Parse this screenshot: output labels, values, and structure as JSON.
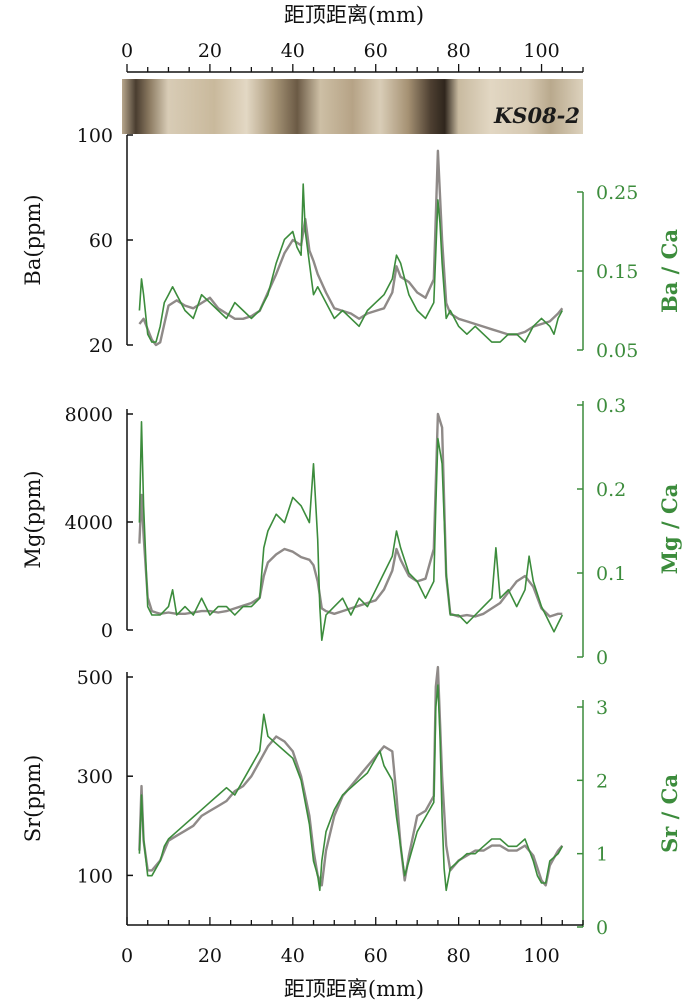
{
  "figure": {
    "top_axis_label": "距顶距离(mm)",
    "bottom_axis_label": "距顶距离(mm)",
    "x_ticks": [
      "0",
      "20",
      "40",
      "60",
      "80",
      "100"
    ],
    "core_label": "KS08-2"
  },
  "colors": {
    "ppm_series": "#8f8a88",
    "ratio_series": "#3c8c3c",
    "axis": "#111111",
    "ratio_axis": "#3c8c3c"
  },
  "chart_data": [
    {
      "type": "line",
      "panel": "Ba",
      "xlim": [
        0,
        110
      ],
      "left_axis": {
        "label": "Ba(ppm)",
        "ticks": [
          "20",
          "60",
          "100"
        ],
        "ylim": [
          20,
          100
        ]
      },
      "right_axis": {
        "label": "Ba / Ca",
        "ticks": [
          "0.05",
          "0.15",
          "0.25"
        ],
        "ylim": [
          0.05,
          0.25
        ]
      },
      "series": [
        {
          "axis": "left",
          "x": [
            3,
            4,
            5,
            6,
            7,
            8,
            9,
            10,
            12,
            14,
            16,
            18,
            20,
            22,
            24,
            26,
            28,
            30,
            32,
            34,
            36,
            38,
            40,
            42,
            43,
            44,
            45,
            46,
            48,
            50,
            52,
            54,
            56,
            58,
            60,
            62,
            64,
            65,
            66,
            68,
            70,
            72,
            74,
            75,
            76,
            77,
            78,
            80,
            82,
            84,
            86,
            88,
            90,
            92,
            94,
            96,
            98,
            100,
            102,
            104,
            105
          ],
          "y": [
            28,
            30,
            26,
            22,
            20,
            21,
            28,
            35,
            37,
            35,
            34,
            36,
            38,
            34,
            32,
            30,
            30,
            31,
            33,
            40,
            47,
            55,
            60,
            58,
            68,
            56,
            52,
            47,
            40,
            34,
            33,
            32,
            30,
            32,
            33,
            34,
            40,
            50,
            46,
            44,
            40,
            38,
            45,
            94,
            60,
            36,
            32,
            30,
            29,
            28,
            27,
            26,
            25,
            24,
            24,
            25,
            27,
            28,
            29,
            32,
            34
          ]
        },
        {
          "axis": "right",
          "x": [
            3,
            3.5,
            4,
            5,
            6,
            7,
            8,
            9,
            10,
            11,
            12,
            14,
            16,
            18,
            20,
            22,
            24,
            26,
            28,
            30,
            32,
            34,
            36,
            38,
            40,
            41,
            42,
            42.5,
            43,
            44,
            45,
            46,
            48,
            50,
            52,
            54,
            56,
            58,
            60,
            62,
            64,
            65,
            66,
            67,
            68,
            70,
            72,
            74,
            75,
            75.5,
            76,
            77,
            78,
            80,
            82,
            84,
            86,
            88,
            90,
            92,
            94,
            96,
            98,
            100,
            102,
            103,
            104,
            105
          ],
          "y": [
            0.1,
            0.14,
            0.12,
            0.07,
            0.06,
            0.06,
            0.08,
            0.11,
            0.12,
            0.13,
            0.12,
            0.1,
            0.09,
            0.12,
            0.11,
            0.1,
            0.09,
            0.11,
            0.1,
            0.09,
            0.1,
            0.12,
            0.16,
            0.19,
            0.2,
            0.18,
            0.17,
            0.26,
            0.2,
            0.16,
            0.12,
            0.13,
            0.11,
            0.09,
            0.1,
            0.09,
            0.08,
            0.1,
            0.11,
            0.12,
            0.14,
            0.17,
            0.16,
            0.14,
            0.12,
            0.1,
            0.09,
            0.11,
            0.24,
            0.21,
            0.16,
            0.09,
            0.1,
            0.08,
            0.07,
            0.08,
            0.07,
            0.06,
            0.06,
            0.07,
            0.07,
            0.06,
            0.08,
            0.09,
            0.08,
            0.07,
            0.09,
            0.1
          ]
        }
      ]
    },
    {
      "type": "line",
      "panel": "Mg",
      "xlim": [
        0,
        110
      ],
      "left_axis": {
        "label": "Mg(ppm)",
        "ticks": [
          "0",
          "4000",
          "8000"
        ],
        "ylim": [
          0,
          8000
        ]
      },
      "right_axis": {
        "label": "Mg / Ca",
        "ticks": [
          "0",
          "0.1",
          "0.2",
          "0.3"
        ],
        "ylim": [
          0,
          0.3
        ]
      },
      "series": [
        {
          "axis": "left",
          "x": [
            3,
            3.5,
            4,
            5,
            6,
            7,
            8,
            10,
            12,
            14,
            16,
            18,
            20,
            22,
            24,
            26,
            28,
            30,
            32,
            33,
            34,
            36,
            38,
            40,
            42,
            44,
            45,
            46,
            47,
            48,
            50,
            52,
            54,
            56,
            58,
            60,
            62,
            64,
            65,
            66,
            68,
            70,
            72,
            74,
            75,
            76,
            77,
            78,
            80,
            82,
            84,
            86,
            88,
            90,
            92,
            94,
            96,
            98,
            100,
            102,
            104,
            105
          ],
          "y": [
            3200,
            5000,
            3500,
            1200,
            700,
            650,
            600,
            650,
            600,
            600,
            650,
            700,
            700,
            650,
            700,
            800,
            900,
            1000,
            1200,
            2000,
            2500,
            2800,
            3000,
            2900,
            2700,
            2600,
            2400,
            1800,
            800,
            700,
            600,
            700,
            800,
            900,
            1000,
            1100,
            1500,
            2200,
            3000,
            2600,
            2000,
            1800,
            1900,
            3000,
            8000,
            7500,
            2000,
            600,
            500,
            550,
            500,
            600,
            800,
            1000,
            1400,
            1800,
            2000,
            1600,
            800,
            500,
            600,
            600
          ]
        },
        {
          "axis": "right",
          "x": [
            3,
            3.5,
            4,
            5,
            6,
            7,
            8,
            10,
            11,
            12,
            14,
            16,
            18,
            20,
            22,
            24,
            26,
            28,
            30,
            32,
            33,
            34,
            36,
            38,
            40,
            42,
            44,
            45,
            46,
            46.5,
            47,
            48,
            50,
            52,
            54,
            56,
            58,
            60,
            62,
            64,
            65,
            66,
            68,
            70,
            72,
            74,
            74.5,
            75,
            76,
            77,
            78,
            80,
            82,
            84,
            86,
            88,
            89,
            90,
            92,
            94,
            96,
            97,
            98,
            100,
            101,
            102,
            103,
            104,
            105
          ],
          "y": [
            0.16,
            0.28,
            0.18,
            0.06,
            0.05,
            0.05,
            0.05,
            0.06,
            0.08,
            0.05,
            0.06,
            0.05,
            0.07,
            0.05,
            0.06,
            0.06,
            0.05,
            0.06,
            0.06,
            0.07,
            0.13,
            0.15,
            0.17,
            0.16,
            0.19,
            0.18,
            0.16,
            0.23,
            0.14,
            0.06,
            0.02,
            0.05,
            0.06,
            0.07,
            0.05,
            0.07,
            0.06,
            0.08,
            0.1,
            0.12,
            0.15,
            0.13,
            0.1,
            0.09,
            0.07,
            0.09,
            0.18,
            0.26,
            0.23,
            0.1,
            0.05,
            0.05,
            0.04,
            0.05,
            0.06,
            0.07,
            0.13,
            0.07,
            0.08,
            0.06,
            0.08,
            0.12,
            0.09,
            0.06,
            0.05,
            0.04,
            0.03,
            0.04,
            0.05
          ]
        }
      ]
    },
    {
      "type": "line",
      "panel": "Sr",
      "xlim": [
        0,
        110
      ],
      "left_axis": {
        "label": "Sr(ppm)",
        "ticks": [
          "100",
          "300",
          "500"
        ],
        "ylim": [
          0,
          500
        ]
      },
      "right_axis": {
        "label": "Sr / Ca",
        "ticks": [
          "0",
          "1",
          "2",
          "3"
        ],
        "ylim": [
          0,
          3
        ]
      },
      "series": [
        {
          "axis": "left",
          "x": [
            3,
            3.5,
            4,
            5,
            6,
            7,
            8,
            10,
            12,
            14,
            16,
            18,
            20,
            22,
            24,
            26,
            28,
            30,
            32,
            34,
            36,
            38,
            40,
            42,
            44,
            45,
            46,
            47,
            48,
            50,
            52,
            54,
            56,
            58,
            60,
            62,
            64,
            65,
            66,
            67,
            68,
            70,
            72,
            74,
            74.5,
            75,
            76,
            77,
            78,
            80,
            82,
            84,
            86,
            88,
            90,
            92,
            94,
            96,
            98,
            100,
            101,
            102,
            104,
            105
          ],
          "y": [
            150,
            280,
            170,
            110,
            110,
            120,
            130,
            170,
            180,
            190,
            200,
            220,
            230,
            240,
            250,
            270,
            280,
            300,
            330,
            360,
            380,
            370,
            350,
            300,
            220,
            150,
            100,
            80,
            150,
            220,
            260,
            280,
            300,
            320,
            340,
            360,
            350,
            260,
            160,
            90,
            140,
            220,
            230,
            260,
            480,
            520,
            300,
            160,
            110,
            130,
            140,
            150,
            150,
            160,
            160,
            150,
            150,
            160,
            140,
            90,
            80,
            120,
            150,
            160
          ]
        },
        {
          "axis": "right",
          "x": [
            3,
            3.5,
            4,
            5,
            6,
            7,
            8,
            9,
            10,
            12,
            14,
            16,
            18,
            20,
            22,
            24,
            26,
            28,
            30,
            32,
            33,
            34,
            36,
            38,
            40,
            42,
            44,
            45,
            46,
            46.5,
            47,
            48,
            50,
            52,
            54,
            56,
            58,
            60,
            61,
            62,
            64,
            65,
            66,
            67,
            68,
            70,
            72,
            74,
            74.5,
            75,
            75.5,
            76,
            76.5,
            77,
            78,
            80,
            82,
            84,
            86,
            88,
            90,
            92,
            94,
            96,
            98,
            99,
            100,
            101,
            102,
            104,
            105
          ],
          "y": [
            1.0,
            1.8,
            1.2,
            0.7,
            0.7,
            0.8,
            0.9,
            1.1,
            1.2,
            1.3,
            1.4,
            1.5,
            1.6,
            1.7,
            1.8,
            1.9,
            1.8,
            2.0,
            2.2,
            2.4,
            2.9,
            2.6,
            2.5,
            2.4,
            2.3,
            2.0,
            1.4,
            0.9,
            0.7,
            0.5,
            0.9,
            1.3,
            1.6,
            1.8,
            1.9,
            2.0,
            2.1,
            2.3,
            2.4,
            2.2,
            2.0,
            1.5,
            1.1,
            0.7,
            0.9,
            1.3,
            1.5,
            1.7,
            3.0,
            3.3,
            2.6,
            1.5,
            0.8,
            0.5,
            0.8,
            0.9,
            1.0,
            1.0,
            1.1,
            1.2,
            1.2,
            1.1,
            1.1,
            1.2,
            0.9,
            0.7,
            0.6,
            0.6,
            0.9,
            1.0,
            1.1
          ]
        }
      ]
    }
  ]
}
